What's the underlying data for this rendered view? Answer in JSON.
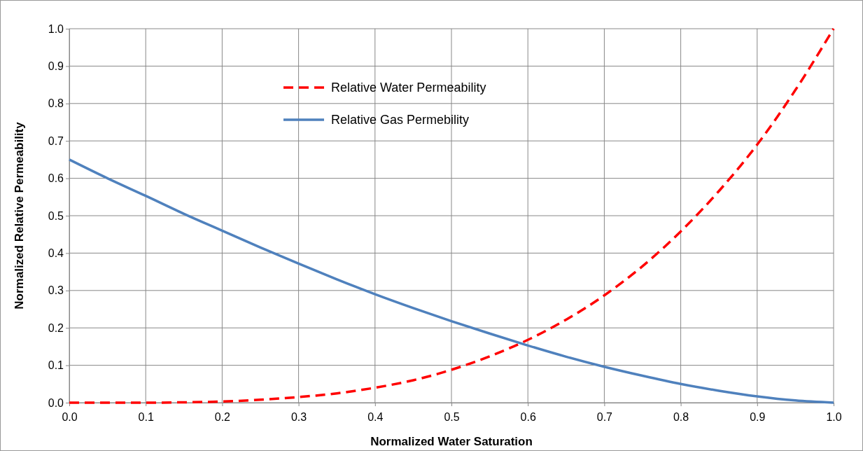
{
  "chart_data": {
    "type": "line",
    "xlabel": "Normalized Water Saturation",
    "ylabel": "Normalized Relative Permeability",
    "xlim": [
      0,
      1
    ],
    "ylim": [
      0,
      1
    ],
    "xticks": [
      {
        "value": 0,
        "label": "0.0"
      },
      0.1,
      0.2,
      0.3,
      0.4,
      0.5,
      0.6,
      0.7,
      0.8,
      0.9,
      {
        "value": 1,
        "label": "1.0"
      }
    ],
    "yticks": [
      {
        "value": 0,
        "label": "0.0"
      },
      0.1,
      0.2,
      0.3,
      0.4,
      0.5,
      0.6,
      0.7,
      0.8,
      0.9,
      {
        "value": 1,
        "label": "1.0"
      }
    ],
    "grid": true,
    "legend": "top",
    "marker": "none",
    "x": [
      0,
      0.05,
      0.1,
      0.15,
      0.2,
      0.25,
      0.3,
      0.35,
      0.4,
      0.45,
      0.5,
      0.55,
      0.6,
      0.65,
      0.7,
      0.75,
      0.8,
      0.85,
      0.9,
      0.95,
      1
    ],
    "series": [
      {
        "name": "Relative Water Permeability",
        "color": "#ff0000",
        "line_style": "dashed",
        "values": [
          0,
          0,
          0,
          0.001,
          0.003,
          0.008,
          0.015,
          0.025,
          0.04,
          0.06,
          0.088,
          0.124,
          0.168,
          0.222,
          0.287,
          0.365,
          0.458,
          0.566,
          0.69,
          0.836,
          1
        ]
      },
      {
        "name": "Relative Gas Permebility",
        "color": "#4f81bd",
        "line_style": "solid",
        "values": [
          0.65,
          0.6,
          0.553,
          0.505,
          0.46,
          0.415,
          0.372,
          0.33,
          0.29,
          0.253,
          0.218,
          0.185,
          0.153,
          0.123,
          0.096,
          0.072,
          0.05,
          0.032,
          0.017,
          0.006,
          0
        ]
      }
    ]
  }
}
